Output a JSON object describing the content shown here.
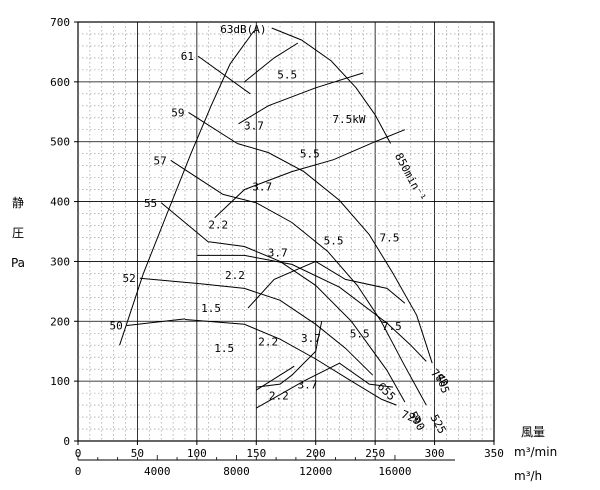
{
  "chart_data": {
    "type": "line",
    "title": "",
    "ylabel_chars": [
      "静",
      "圧",
      "Pa"
    ],
    "xlabel_title": "風量",
    "xlabel_unit_min": "m³/min",
    "xlabel_unit_h": "m³/h",
    "xlim": [
      0,
      350
    ],
    "ylim": [
      0,
      700
    ],
    "x_ticks": [
      "0",
      "50",
      "100",
      "150",
      "200",
      "250",
      "300",
      "350"
    ],
    "x2_ticks": [
      {
        "x": 0,
        "label": "0"
      },
      {
        "x": 66.67,
        "label": "4000"
      },
      {
        "x": 133.33,
        "label": "8000"
      },
      {
        "x": 200,
        "label": "12000"
      },
      {
        "x": 266.67,
        "label": "16000"
      }
    ],
    "y_ticks": [
      "0",
      "100",
      "200",
      "300",
      "400",
      "500",
      "600",
      "700"
    ],
    "grid": true,
    "db_curves": [
      {
        "label": "63dB(A)",
        "points": [
          [
            162,
            688
          ]
        ]
      },
      {
        "label": "61",
        "points": [
          [
            101,
            643
          ],
          [
            145,
            580
          ]
        ]
      },
      {
        "label": "59",
        "points": [
          [
            93,
            549
          ],
          [
            134,
            497
          ]
        ]
      },
      {
        "label": "57",
        "points": [
          [
            78,
            469
          ],
          [
            122,
            412
          ]
        ]
      },
      {
        "label": "55",
        "points": [
          [
            70,
            398
          ],
          [
            110,
            332
          ]
        ]
      },
      {
        "label": "52",
        "points": [
          [
            52,
            272
          ],
          [
            102,
            263
          ]
        ]
      },
      {
        "label": "50",
        "points": [
          [
            41,
            193
          ],
          [
            90,
            204
          ]
        ]
      }
    ],
    "rpm_curves": [
      {
        "label": "850min⁻¹",
        "points": [
          [
            163,
            690
          ],
          [
            188,
            670
          ],
          [
            213,
            635
          ],
          [
            234,
            590
          ],
          [
            250,
            545
          ],
          [
            263,
            497
          ]
        ]
      },
      {
        "label": "780",
        "points": [
          [
            100,
            310
          ],
          [
            140,
            310
          ],
          [
            180,
            295
          ],
          [
            220,
            257
          ],
          [
            260,
            197
          ],
          [
            280,
            160
          ],
          [
            293,
            133
          ]
        ]
      },
      {
        "label": "720",
        "points": [
          [
            90,
            203
          ],
          [
            140,
            195
          ],
          [
            170,
            170
          ],
          [
            200,
            137
          ],
          [
            230,
            100
          ],
          [
            255,
            70
          ],
          [
            268,
            60
          ]
        ]
      },
      {
        "label": "655",
        "points": [
          [
            102,
            263
          ],
          [
            140,
            255
          ],
          [
            170,
            235
          ],
          [
            200,
            195
          ],
          [
            225,
            155
          ],
          [
            248,
            110
          ]
        ]
      },
      {
        "label": "590",
        "points": [
          [
            110,
            333
          ],
          [
            140,
            325
          ],
          [
            170,
            300
          ],
          [
            200,
            260
          ],
          [
            230,
            200
          ],
          [
            260,
            118
          ],
          [
            275,
            65
          ]
        ]
      },
      {
        "label": "525",
        "points": [
          [
            122,
            412
          ],
          [
            150,
            398
          ],
          [
            180,
            365
          ],
          [
            210,
            317
          ],
          [
            235,
            260
          ],
          [
            255,
            200
          ],
          [
            275,
            125
          ],
          [
            293,
            60
          ]
        ]
      },
      {
        "label": "465",
        "points": [
          [
            134,
            497
          ],
          [
            160,
            482
          ],
          [
            190,
            450
          ],
          [
            220,
            402
          ],
          [
            245,
            345
          ],
          [
            265,
            280
          ],
          [
            285,
            210
          ],
          [
            298,
            130
          ]
        ]
      }
    ],
    "boundary_left": {
      "points": [
        [
          35,
          160
        ],
        [
          55,
          280
        ],
        [
          75,
          380
        ],
        [
          95,
          480
        ],
        [
          112,
          560
        ],
        [
          128,
          630
        ],
        [
          148,
          685
        ]
      ]
    },
    "boundary_bottom": {
      "points": [
        [
          150,
          90
        ],
        [
          170,
          95
        ],
        [
          180,
          110
        ],
        [
          200,
          150
        ],
        [
          205,
          200
        ]
      ]
    },
    "power_dividers": [
      {
        "points": [
          [
            150,
            85
          ],
          [
            182,
            125
          ]
        ]
      },
      {
        "points": [
          [
            150,
            55
          ],
          [
            190,
            100
          ],
          [
            220,
            130
          ],
          [
            245,
            95
          ],
          [
            265,
            90
          ]
        ]
      },
      {
        "points": [
          [
            143,
            222
          ],
          [
            165,
            270
          ],
          [
            200,
            300
          ],
          [
            225,
            270
          ],
          [
            260,
            255
          ],
          [
            275,
            230
          ]
        ]
      },
      {
        "points": [
          [
            115,
            373
          ],
          [
            140,
            420
          ],
          [
            180,
            450
          ],
          [
            215,
            470
          ],
          [
            250,
            500
          ],
          [
            275,
            520
          ]
        ]
      },
      {
        "points": [
          [
            135,
            530
          ],
          [
            160,
            560
          ],
          [
            200,
            590
          ],
          [
            240,
            615
          ]
        ]
      },
      {
        "points": [
          [
            140,
            600
          ],
          [
            165,
            640
          ],
          [
            185,
            665
          ]
        ]
      }
    ],
    "power_labels": [
      {
        "x": 176,
        "y": 612,
        "label": "5.5"
      },
      {
        "x": 228,
        "y": 538,
        "label": "7.5kW"
      },
      {
        "x": 148,
        "y": 527,
        "label": "3.7"
      },
      {
        "x": 195,
        "y": 480,
        "label": "5.5"
      },
      {
        "x": 155,
        "y": 425,
        "label": "3.7"
      },
      {
        "x": 118,
        "y": 362,
        "label": "2.2"
      },
      {
        "x": 168,
        "y": 315,
        "label": "3.7"
      },
      {
        "x": 215,
        "y": 335,
        "label": "5.5"
      },
      {
        "x": 262,
        "y": 340,
        "label": "7.5"
      },
      {
        "x": 132,
        "y": 277,
        "label": "2.2"
      },
      {
        "x": 112,
        "y": 222,
        "label": "1.5"
      },
      {
        "x": 123,
        "y": 155,
        "label": "1.5"
      },
      {
        "x": 160,
        "y": 166,
        "label": "2.2"
      },
      {
        "x": 196,
        "y": 172,
        "label": "3.7"
      },
      {
        "x": 237,
        "y": 180,
        "label": "5.5"
      },
      {
        "x": 264,
        "y": 192,
        "label": "7.5"
      },
      {
        "x": 169,
        "y": 76,
        "label": "2.2"
      },
      {
        "x": 193,
        "y": 94,
        "label": "3.7"
      }
    ]
  }
}
